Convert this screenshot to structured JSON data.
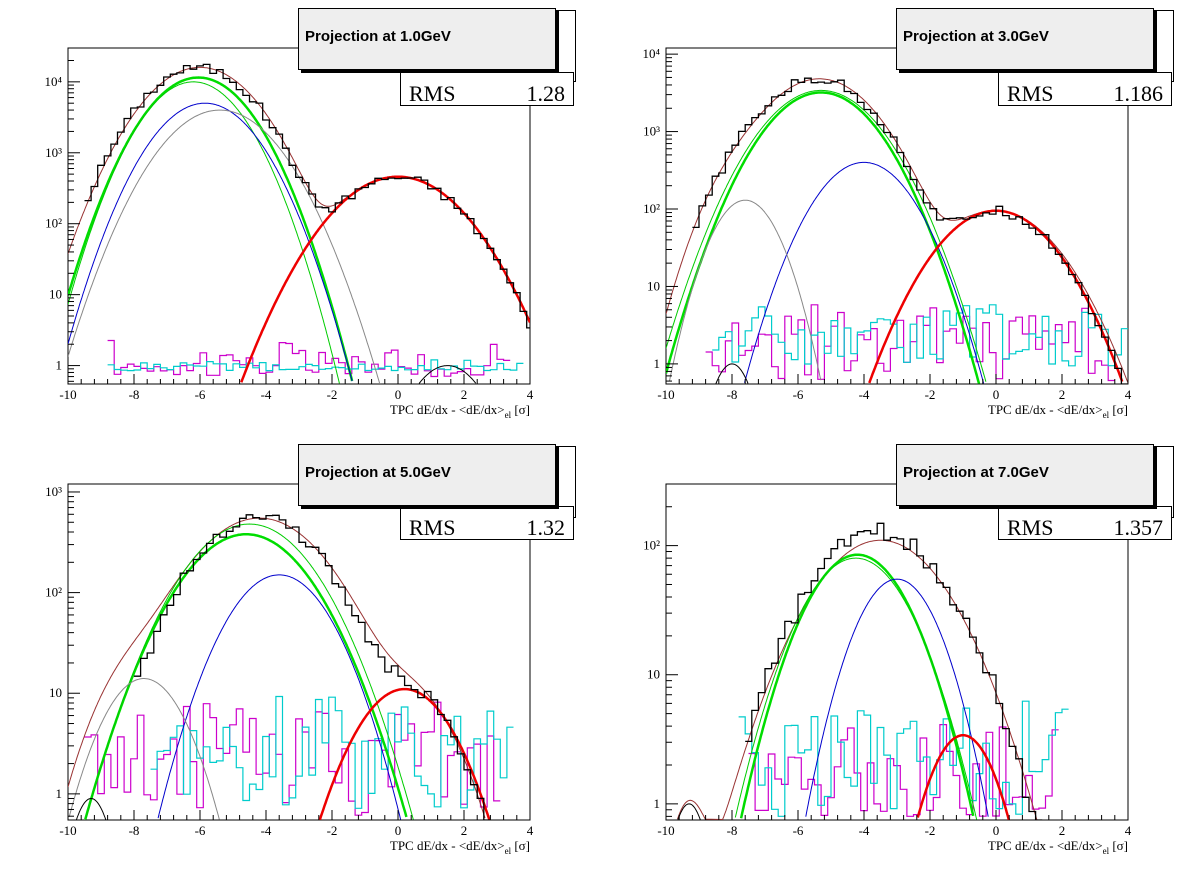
{
  "xlabel_html_parts": {
    "pre": "TPC dE/dx - <dE/dx>",
    "sub": "el",
    "post": " [σ]"
  },
  "colors": {
    "data": "#000000",
    "total_fit": "#993333",
    "green_thick": "#00dd00",
    "green_thin": "#00cc00",
    "blue": "#0000cc",
    "grey": "#888888",
    "red": "#ee0000",
    "magenta": "#cc00cc",
    "cyan": "#00cccc",
    "black_thin": "#000000"
  },
  "panels": [
    {
      "title": "Projection at 1.0GeV",
      "rms_label": "RMS",
      "rms_value": "1.28",
      "chart_data": {
        "type": "histogram",
        "xlim": [
          -10,
          4
        ],
        "ylim": [
          0.55,
          30000
        ],
        "yscale": "log",
        "xticks": [
          -10,
          -8,
          -6,
          -4,
          -2,
          0,
          2,
          4
        ],
        "yticks": [
          {
            "v": 1,
            "t": "1"
          },
          {
            "v": 10,
            "t": "10"
          },
          {
            "v": 100,
            "t": "10²"
          },
          {
            "v": 1000,
            "t": "10³"
          },
          {
            "v": 10000,
            "t": "10⁴"
          }
        ],
        "xlabel": "TPC dE/dx - <dE/dx>|el [σ]",
        "data_hist": {
          "start": -9.5,
          "width": 0.2,
          "gauss": [
            [
              16000,
              -6.05,
              1.15
            ],
            [
              450,
              0,
              1.3
            ]
          ]
        },
        "curves": [
          {
            "key": "total_fit",
            "w": 1,
            "gauss": [
              [
                16000,
                -6.0,
                1.15
              ],
              [
                460,
                0,
                1.3
              ]
            ]
          },
          {
            "key": "green_thick",
            "w": 2.5,
            "gauss": [
              [
                11500,
                -6.05,
                1.05
              ]
            ]
          },
          {
            "key": "green_thin",
            "w": 1,
            "gauss": [
              [
                10000,
                -6.2,
                1.0
              ]
            ]
          },
          {
            "key": "blue",
            "w": 1,
            "gauss": [
              [
                5000,
                -5.85,
                1.05
              ]
            ]
          },
          {
            "key": "grey",
            "w": 1,
            "gauss": [
              [
                4000,
                -5.4,
                1.15
              ]
            ]
          },
          {
            "key": "red",
            "w": 2.5,
            "gauss": [
              [
                460,
                0,
                1.3
              ]
            ]
          },
          {
            "key": "black_thin",
            "w": 1,
            "gauss": [
              [
                1.0,
                1.5,
                0.8
              ]
            ]
          }
        ],
        "noise": [
          {
            "key": "magenta",
            "from": -8.8,
            "to": 3.4,
            "lo": 0.7,
            "hi": 2.6
          },
          {
            "key": "cyan",
            "from": -8.8,
            "to": 3.8,
            "lo": 0.85,
            "hi": 1.3
          }
        ]
      }
    },
    {
      "title": "Projection at 3.0GeV",
      "rms_label": "RMS",
      "rms_value": "1.186",
      "chart_data": {
        "type": "histogram",
        "xlim": [
          -10,
          4
        ],
        "ylim": [
          0.55,
          12000
        ],
        "yscale": "log",
        "xticks": [
          -10,
          -8,
          -6,
          -4,
          -2,
          0,
          2,
          4
        ],
        "yticks": [
          {
            "v": 1,
            "t": "1"
          },
          {
            "v": 10,
            "t": "10"
          },
          {
            "v": 100,
            "t": "10²"
          },
          {
            "v": 1000,
            "t": "10³"
          },
          {
            "v": 10000,
            "t": "10⁴"
          }
        ],
        "xlabel": "TPC dE/dx - <dE/dx>|el [σ]",
        "data_hist": {
          "start": -9.2,
          "width": 0.2,
          "gauss": [
            [
              4800,
              -5.4,
              1.2
            ],
            [
              95,
              0,
              1.2
            ],
            [
              120,
              -7.7,
              0.7
            ]
          ]
        },
        "curves": [
          {
            "key": "total_fit",
            "w": 1,
            "gauss": [
              [
                4800,
                -5.35,
                1.2
              ],
              [
                95,
                0,
                1.25
              ],
              [
                130,
                -7.8,
                0.75
              ]
            ]
          },
          {
            "key": "green_thick",
            "w": 2.5,
            "gauss": [
              [
                3200,
                -5.3,
                1.15
              ]
            ]
          },
          {
            "key": "green_thin",
            "w": 1,
            "gauss": [
              [
                3400,
                -5.3,
                1.2
              ]
            ]
          },
          {
            "key": "blue",
            "w": 1,
            "gauss": [
              [
                400,
                -4.0,
                1.0
              ]
            ]
          },
          {
            "key": "grey",
            "w": 1,
            "gauss": [
              [
                130,
                -7.6,
                0.7
              ]
            ]
          },
          {
            "key": "red",
            "w": 2.5,
            "gauss": [
              [
                95,
                0,
                1.2
              ]
            ]
          },
          {
            "key": "black_thin",
            "w": 1,
            "gauss": [
              [
                1.0,
                -8.0,
                0.45
              ]
            ]
          }
        ],
        "noise": [
          {
            "key": "magenta",
            "from": -8.8,
            "to": 3.6,
            "lo": 0.6,
            "hi": 8.5
          },
          {
            "key": "cyan",
            "from": -8.6,
            "to": 4.0,
            "lo": 0.8,
            "hi": 8.0
          }
        ]
      }
    },
    {
      "title": "Projection at 5.0GeV",
      "rms_label": "RMS",
      "rms_value": "1.32",
      "chart_data": {
        "type": "histogram",
        "xlim": [
          -10,
          4
        ],
        "ylim": [
          0.55,
          1200
        ],
        "yscale": "log",
        "xticks": [
          -10,
          -8,
          -6,
          -4,
          -2,
          0,
          2,
          4
        ],
        "yticks": [
          {
            "v": 1,
            "t": "1"
          },
          {
            "v": 10,
            "t": "10"
          },
          {
            "v": 100,
            "t": "10²"
          },
          {
            "v": 1000,
            "t": "10³"
          }
        ],
        "xlabel": "TPC dE/dx - <dE/dx>|el [σ]",
        "data_hist": {
          "start": -8.0,
          "width": 0.2,
          "gauss": [
            [
              580,
              -4.2,
              1.35
            ],
            [
              11,
              0.2,
              1.0
            ]
          ]
        },
        "curves": [
          {
            "key": "total_fit",
            "w": 1,
            "gauss": [
              [
                550,
                -4.2,
                1.45
              ],
              [
                11,
                0.2,
                1.0
              ],
              [
                15,
                -7.9,
                0.9
              ]
            ]
          },
          {
            "key": "green_thick",
            "w": 2.5,
            "gauss": [
              [
                380,
                -4.6,
                1.35
              ]
            ]
          },
          {
            "key": "green_thin",
            "w": 1,
            "gauss": [
              [
                480,
                -4.5,
                1.35
              ]
            ]
          },
          {
            "key": "blue",
            "w": 1,
            "gauss": [
              [
                150,
                -3.6,
                1.1
              ]
            ]
          },
          {
            "key": "grey",
            "w": 1,
            "gauss": [
              [
                14,
                -7.7,
                0.9
              ]
            ]
          },
          {
            "key": "red",
            "w": 2.5,
            "gauss": [
              [
                11,
                0.2,
                1.05
              ]
            ]
          },
          {
            "key": "black_thin",
            "w": 1,
            "gauss": [
              [
                0.9,
                -9.3,
                0.45
              ]
            ]
          }
        ],
        "noise": [
          {
            "key": "magenta",
            "from": -9.5,
            "to": 3.0,
            "lo": 0.6,
            "hi": 12
          },
          {
            "key": "cyan",
            "from": -7.5,
            "to": 3.4,
            "lo": 0.7,
            "hi": 10
          }
        ]
      }
    },
    {
      "title": "Projection at 7.0GeV",
      "rms_label": "RMS",
      "rms_value": "1.357",
      "chart_data": {
        "type": "histogram",
        "xlim": [
          -10,
          4
        ],
        "ylim": [
          0.75,
          300
        ],
        "yscale": "log",
        "xticks": [
          -10,
          -8,
          -6,
          -4,
          -2,
          0,
          2,
          4
        ],
        "yticks": [
          {
            "v": 1,
            "t": "1"
          },
          {
            "v": 10,
            "t": "10"
          },
          {
            "v": 100,
            "t": "10²"
          }
        ],
        "xlabel": "TPC dE/dx - <dE/dx>|el [σ]",
        "data_hist": {
          "start": -7.6,
          "width": 0.2,
          "gauss": [
            [
              130,
              -3.6,
              1.45
            ],
            [
              3.5,
              -1.0,
              0.8
            ]
          ]
        },
        "curves": [
          {
            "key": "total_fit",
            "w": 1,
            "gauss": [
              [
                110,
                -3.5,
                1.5
              ],
              [
                1.0,
                -9.3,
                0.45
              ]
            ]
          },
          {
            "key": "green_thick",
            "w": 2.5,
            "gauss": [
              [
                85,
                -4.2,
                1.15
              ]
            ]
          },
          {
            "key": "green_thin",
            "w": 1,
            "gauss": [
              [
                80,
                -4.25,
                1.2
              ]
            ]
          },
          {
            "key": "blue",
            "w": 1,
            "gauss": [
              [
                55,
                -3.0,
                0.95
              ]
            ]
          },
          {
            "key": "red",
            "w": 2.5,
            "gauss": [
              [
                3.4,
                -1.0,
                0.8
              ]
            ]
          },
          {
            "key": "black_thin",
            "w": 1,
            "gauss": [
              [
                1.0,
                -9.3,
                0.45
              ]
            ]
          }
        ],
        "noise": [
          {
            "key": "magenta",
            "from": -7.5,
            "to": 1.8,
            "lo": 0.8,
            "hi": 5
          },
          {
            "key": "cyan",
            "from": -7.8,
            "to": 2.2,
            "lo": 0.8,
            "hi": 8
          }
        ]
      }
    }
  ]
}
